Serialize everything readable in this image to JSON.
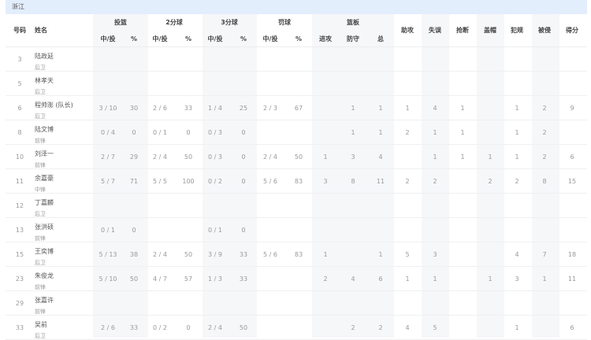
{
  "team": "浙江",
  "headers": {
    "number": "号码",
    "name": "姓名",
    "fg": "投篮",
    "two": "2分球",
    "three": "3分球",
    "ft": "罚球",
    "reb": "篮板",
    "made_att": "中/投",
    "pct": "%",
    "oreb": "进攻",
    "dreb": "防守",
    "treb": "总",
    "ast": "助攻",
    "tov": "失误",
    "stl": "抢断",
    "blk": "盖帽",
    "pf": "犯规",
    "fd": "被侵",
    "pts": "得分"
  },
  "players": [
    {
      "no": "3",
      "name": "陆政延",
      "pos": "后卫",
      "s": [
        "",
        "",
        "",
        "",
        "",
        "",
        "",
        "",
        "",
        "",
        "",
        "",
        "",
        "",
        "",
        "",
        "",
        "",
        ""
      ]
    },
    {
      "no": "5",
      "name": "林孝天",
      "pos": "后卫",
      "s": [
        "",
        "",
        "",
        "",
        "",
        "",
        "",
        "",
        "",
        "",
        "",
        "",
        "",
        "",
        "",
        "",
        "",
        "",
        ""
      ]
    },
    {
      "no": "6",
      "name": "程帅澎 (队长)",
      "pos": "后卫",
      "s": [
        "3 / 10",
        "30",
        "2 / 6",
        "33",
        "1 / 4",
        "25",
        "2 / 3",
        "67",
        "",
        "1",
        "1",
        "1",
        "4",
        "1",
        "",
        "1",
        "2",
        "9"
      ]
    },
    {
      "no": "8",
      "name": "陆文博",
      "pos": "前锋",
      "s": [
        "0 / 4",
        "0",
        "0 / 1",
        "0",
        "0 / 3",
        "0",
        "",
        "",
        "",
        "1",
        "1",
        "2",
        "1",
        "1",
        "",
        "1",
        "2",
        ""
      ]
    },
    {
      "no": "10",
      "name": "刘泽一",
      "pos": "前锋",
      "s": [
        "2 / 7",
        "29",
        "2 / 4",
        "50",
        "0 / 3",
        "0",
        "2 / 4",
        "50",
        "1",
        "3",
        "4",
        "",
        "1",
        "1",
        "1",
        "1",
        "2",
        "6"
      ]
    },
    {
      "no": "11",
      "name": "余嘉豪",
      "pos": "中锋",
      "s": [
        "5 / 7",
        "71",
        "5 / 5",
        "100",
        "0 / 2",
        "0",
        "5 / 6",
        "83",
        "3",
        "8",
        "11",
        "2",
        "2",
        "",
        "2",
        "2",
        "8",
        "15"
      ]
    },
    {
      "no": "12",
      "name": "丁嘉麟",
      "pos": "后卫",
      "s": [
        "",
        "",
        "",
        "",
        "",
        "",
        "",
        "",
        "",
        "",
        "",
        "",
        "",
        "",
        "",
        "",
        "",
        ""
      ]
    },
    {
      "no": "13",
      "name": "张洪硕",
      "pos": "前锋",
      "s": [
        "0 / 1",
        "0",
        "",
        "",
        "0 / 1",
        "0",
        "",
        "",
        "",
        "",
        "",
        "",
        "",
        "",
        "",
        "",
        "",
        ""
      ]
    },
    {
      "no": "15",
      "name": "王奕博",
      "pos": "后卫",
      "s": [
        "5 / 13",
        "38",
        "2 / 4",
        "50",
        "3 / 9",
        "33",
        "5 / 6",
        "83",
        "1",
        "",
        "1",
        "5",
        "3",
        "",
        "",
        "4",
        "7",
        "18"
      ]
    },
    {
      "no": "23",
      "name": "朱俊龙",
      "pos": "前锋",
      "s": [
        "5 / 10",
        "50",
        "4 / 7",
        "57",
        "1 / 3",
        "33",
        "",
        "",
        "2",
        "4",
        "6",
        "1",
        "1",
        "",
        "1",
        "3",
        "1",
        "11"
      ]
    },
    {
      "no": "29",
      "name": "张嘉许",
      "pos": "前锋",
      "s": [
        "",
        "",
        "",
        "",
        "",
        "",
        "",
        "",
        "",
        "",
        "",
        "",
        "",
        "",
        "",
        "",
        "",
        ""
      ]
    },
    {
      "no": "33",
      "name": "吴前",
      "pos": "后卫",
      "s": [
        "2 / 6",
        "33",
        "0 / 2",
        "0",
        "2 / 4",
        "50",
        "",
        "",
        "",
        "2",
        "2",
        "4",
        "5",
        "",
        "",
        "1",
        "",
        "6"
      ]
    }
  ]
}
